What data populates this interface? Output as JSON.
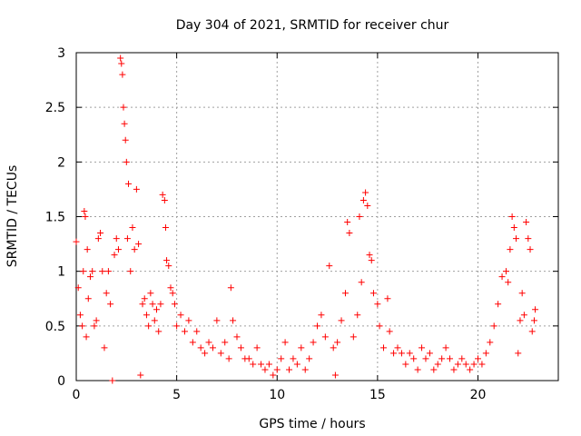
{
  "chart_data": {
    "type": "scatter",
    "title": "Day 304 of 2021, SRMTID for receiver chur",
    "xlabel": "GPS time / hours",
    "ylabel": "SRMTID / TECUs",
    "xlim": [
      0,
      24
    ],
    "ylim": [
      0,
      3
    ],
    "xticks": [
      0,
      5,
      10,
      15,
      20
    ],
    "xtick_labels": [
      "0",
      "5",
      "10",
      "15",
      "20"
    ],
    "yticks": [
      0,
      0.5,
      1,
      1.5,
      2,
      2.5,
      3
    ],
    "ytick_labels": [
      "0",
      "0.5",
      "1",
      "1.5",
      "2",
      "2.5",
      "3"
    ],
    "grid": true,
    "marker": "+",
    "color": "#ff0000",
    "series": [
      {
        "name": "SRMTID",
        "points": [
          [
            0.0,
            1.27
          ],
          [
            0.1,
            0.85
          ],
          [
            0.2,
            0.6
          ],
          [
            0.3,
            0.5
          ],
          [
            0.35,
            1.0
          ],
          [
            0.4,
            1.55
          ],
          [
            0.45,
            1.5
          ],
          [
            0.5,
            0.4
          ],
          [
            0.55,
            1.2
          ],
          [
            0.6,
            0.75
          ],
          [
            0.7,
            0.95
          ],
          [
            0.8,
            1.0
          ],
          [
            0.9,
            0.5
          ],
          [
            1.0,
            0.55
          ],
          [
            1.1,
            1.3
          ],
          [
            1.2,
            1.35
          ],
          [
            1.3,
            1.0
          ],
          [
            1.4,
            0.3
          ],
          [
            1.5,
            0.8
          ],
          [
            1.6,
            1.0
          ],
          [
            1.7,
            0.7
          ],
          [
            1.8,
            0.0
          ],
          [
            1.9,
            1.15
          ],
          [
            2.0,
            1.3
          ],
          [
            2.1,
            1.2
          ],
          [
            2.2,
            2.95
          ],
          [
            2.25,
            2.9
          ],
          [
            2.3,
            2.8
          ],
          [
            2.35,
            2.5
          ],
          [
            2.4,
            2.35
          ],
          [
            2.45,
            2.2
          ],
          [
            2.5,
            2.0
          ],
          [
            2.55,
            1.3
          ],
          [
            2.6,
            1.8
          ],
          [
            2.7,
            1.0
          ],
          [
            2.8,
            1.4
          ],
          [
            2.9,
            1.2
          ],
          [
            3.0,
            1.75
          ],
          [
            3.1,
            1.25
          ],
          [
            3.2,
            0.05
          ],
          [
            3.3,
            0.7
          ],
          [
            3.4,
            0.75
          ],
          [
            3.5,
            0.6
          ],
          [
            3.6,
            0.5
          ],
          [
            3.7,
            0.8
          ],
          [
            3.8,
            0.7
          ],
          [
            3.9,
            0.55
          ],
          [
            4.0,
            0.65
          ],
          [
            4.1,
            0.45
          ],
          [
            4.2,
            0.7
          ],
          [
            4.3,
            1.7
          ],
          [
            4.4,
            1.65
          ],
          [
            4.45,
            1.4
          ],
          [
            4.5,
            1.1
          ],
          [
            4.6,
            1.05
          ],
          [
            4.7,
            0.85
          ],
          [
            4.8,
            0.8
          ],
          [
            4.9,
            0.7
          ],
          [
            5.0,
            0.5
          ],
          [
            5.2,
            0.6
          ],
          [
            5.4,
            0.45
          ],
          [
            5.6,
            0.55
          ],
          [
            5.8,
            0.35
          ],
          [
            6.0,
            0.45
          ],
          [
            6.2,
            0.3
          ],
          [
            6.4,
            0.25
          ],
          [
            6.6,
            0.35
          ],
          [
            6.8,
            0.3
          ],
          [
            7.0,
            0.55
          ],
          [
            7.2,
            0.25
          ],
          [
            7.4,
            0.35
          ],
          [
            7.6,
            0.2
          ],
          [
            7.7,
            0.85
          ],
          [
            7.8,
            0.55
          ],
          [
            8.0,
            0.4
          ],
          [
            8.2,
            0.3
          ],
          [
            8.4,
            0.2
          ],
          [
            8.6,
            0.2
          ],
          [
            8.8,
            0.15
          ],
          [
            9.0,
            0.3
          ],
          [
            9.2,
            0.15
          ],
          [
            9.4,
            0.1
          ],
          [
            9.6,
            0.15
          ],
          [
            9.8,
            0.05
          ],
          [
            10.0,
            0.1
          ],
          [
            10.2,
            0.2
          ],
          [
            10.4,
            0.35
          ],
          [
            10.6,
            0.1
          ],
          [
            10.8,
            0.2
          ],
          [
            11.0,
            0.15
          ],
          [
            11.2,
            0.3
          ],
          [
            11.4,
            0.1
          ],
          [
            11.6,
            0.2
          ],
          [
            11.8,
            0.35
          ],
          [
            12.0,
            0.5
          ],
          [
            12.2,
            0.6
          ],
          [
            12.4,
            0.4
          ],
          [
            12.6,
            1.05
          ],
          [
            12.8,
            0.3
          ],
          [
            12.9,
            0.05
          ],
          [
            13.0,
            0.35
          ],
          [
            13.2,
            0.55
          ],
          [
            13.4,
            0.8
          ],
          [
            13.5,
            1.45
          ],
          [
            13.6,
            1.35
          ],
          [
            13.8,
            0.4
          ],
          [
            14.0,
            0.6
          ],
          [
            14.1,
            1.5
          ],
          [
            14.2,
            0.9
          ],
          [
            14.3,
            1.65
          ],
          [
            14.4,
            1.72
          ],
          [
            14.5,
            1.6
          ],
          [
            14.6,
            1.15
          ],
          [
            14.7,
            1.1
          ],
          [
            14.8,
            0.8
          ],
          [
            15.0,
            0.7
          ],
          [
            15.1,
            0.5
          ],
          [
            15.3,
            0.3
          ],
          [
            15.5,
            0.75
          ],
          [
            15.6,
            0.45
          ],
          [
            15.8,
            0.25
          ],
          [
            16.0,
            0.3
          ],
          [
            16.2,
            0.25
          ],
          [
            16.4,
            0.15
          ],
          [
            16.6,
            0.25
          ],
          [
            16.8,
            0.2
          ],
          [
            17.0,
            0.1
          ],
          [
            17.2,
            0.3
          ],
          [
            17.4,
            0.2
          ],
          [
            17.6,
            0.25
          ],
          [
            17.8,
            0.1
          ],
          [
            18.0,
            0.15
          ],
          [
            18.2,
            0.2
          ],
          [
            18.4,
            0.3
          ],
          [
            18.6,
            0.2
          ],
          [
            18.8,
            0.1
          ],
          [
            19.0,
            0.15
          ],
          [
            19.2,
            0.2
          ],
          [
            19.4,
            0.15
          ],
          [
            19.6,
            0.1
          ],
          [
            19.8,
            0.15
          ],
          [
            20.0,
            0.2
          ],
          [
            20.2,
            0.15
          ],
          [
            20.4,
            0.25
          ],
          [
            20.6,
            0.35
          ],
          [
            20.8,
            0.5
          ],
          [
            21.0,
            0.7
          ],
          [
            21.2,
            0.95
          ],
          [
            21.4,
            1.0
          ],
          [
            21.5,
            0.9
          ],
          [
            21.6,
            1.2
          ],
          [
            21.7,
            1.5
          ],
          [
            21.8,
            1.4
          ],
          [
            21.9,
            1.3
          ],
          [
            22.0,
            0.25
          ],
          [
            22.1,
            0.55
          ],
          [
            22.2,
            0.8
          ],
          [
            22.3,
            0.6
          ],
          [
            22.4,
            1.45
          ],
          [
            22.5,
            1.3
          ],
          [
            22.6,
            1.2
          ],
          [
            22.7,
            0.45
          ],
          [
            22.8,
            0.55
          ],
          [
            22.85,
            0.65
          ]
        ]
      }
    ]
  }
}
